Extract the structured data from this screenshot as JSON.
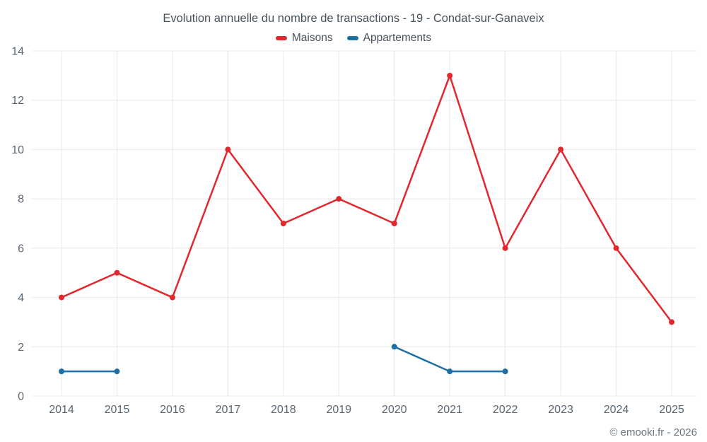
{
  "title": "Evolution annuelle du nombre de transactions - 19 - Condat-sur-Ganaveix",
  "footer": "© emooki.fr - 2026",
  "colors": {
    "maisons": "#e0282e",
    "appartements": "#1c6ea4",
    "grid": "#e8e8e8",
    "axis_text": "#5b6670",
    "title_text": "#47525c"
  },
  "chart_data": {
    "type": "line",
    "title": "Evolution annuelle du nombre de transactions - 19 - Condat-sur-Ganaveix",
    "x": [
      2014,
      2015,
      2016,
      2017,
      2018,
      2019,
      2020,
      2021,
      2022,
      2023,
      2024,
      2025
    ],
    "series": [
      {
        "name": "Maisons",
        "color": "#e0282e",
        "values": [
          4,
          5,
          4,
          10,
          7,
          8,
          7,
          13,
          6,
          10,
          6,
          3
        ]
      },
      {
        "name": "Appartements",
        "color": "#1c6ea4",
        "values": [
          1,
          1,
          null,
          null,
          null,
          null,
          2,
          1,
          1,
          null,
          null,
          null
        ]
      }
    ],
    "xlabel": "",
    "ylabel": "",
    "ylim": [
      0,
      14
    ],
    "yticks": [
      0,
      2,
      4,
      6,
      8,
      10,
      12,
      14
    ],
    "grid": true,
    "legend_position": "top"
  }
}
